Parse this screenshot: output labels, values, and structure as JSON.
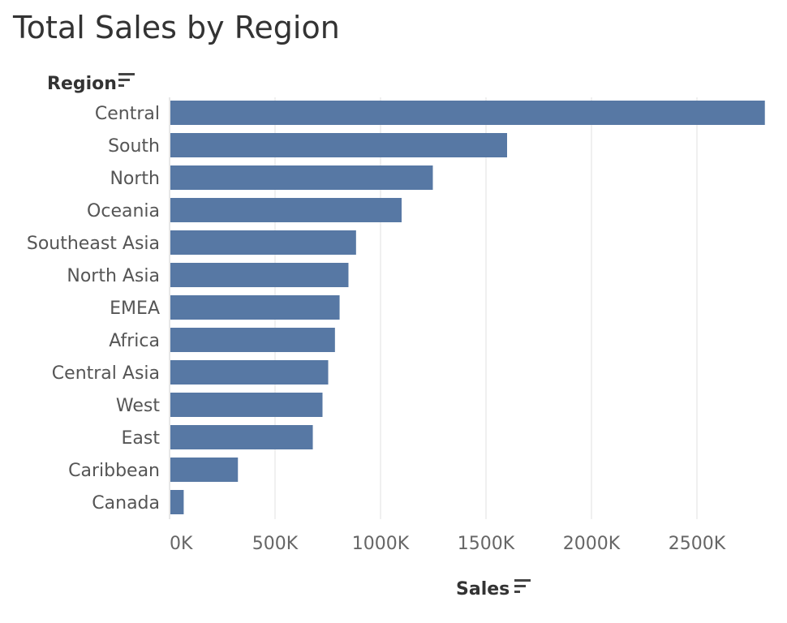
{
  "title": "Total Sales by Region",
  "chart_data": {
    "type": "bar",
    "orientation": "horizontal",
    "title": "Total Sales by Region",
    "ylabel": "Region",
    "xlabel": "Sales",
    "categories": [
      "Central",
      "South",
      "North",
      "Oceania",
      "Southeast Asia",
      "North Asia",
      "EMEA",
      "Africa",
      "Central Asia",
      "West",
      "East",
      "Caribbean",
      "Canada"
    ],
    "values": [
      2822000,
      1600000,
      1248000,
      1100000,
      884000,
      848000,
      806000,
      784000,
      752000,
      725000,
      679000,
      324000,
      67000
    ],
    "xlim": [
      0,
      2900000
    ],
    "ticks": [
      0,
      500000,
      1000000,
      1500000,
      2000000,
      2500000
    ],
    "tick_labels": [
      "0K",
      "500K",
      "1000K",
      "1500K",
      "2000K",
      "2500K"
    ],
    "bar_color": "#5778a4",
    "grid": true,
    "grid_color": "#ebebeb",
    "sort_icon": "sort-descending-icon"
  }
}
